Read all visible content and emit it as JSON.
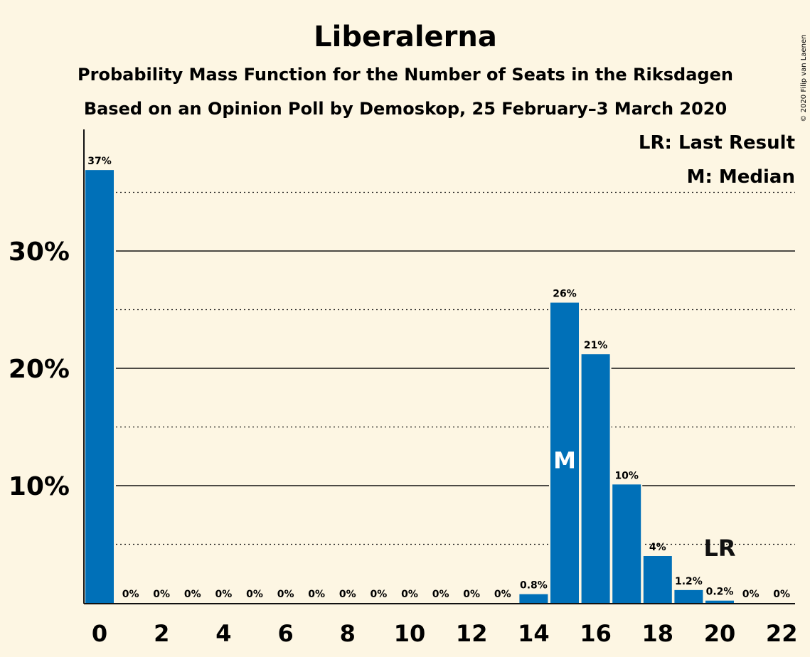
{
  "title": "Liberalerna",
  "subtitle1": "Probability Mass Function for the Number of Seats in the Riksdagen",
  "subtitle2": "Based on an Opinion Poll by Demoskop, 25 February–3 March 2020",
  "copyright": "© 2020 Filip van Laenen",
  "legend": {
    "last_result": "LR: Last Result",
    "median": "M: Median"
  },
  "colors": {
    "bar": "#0070b8",
    "background": "#fdf6e3",
    "text": "#111111"
  },
  "chart_data": {
    "type": "bar",
    "x": [
      0,
      1,
      2,
      3,
      4,
      5,
      6,
      7,
      8,
      9,
      10,
      11,
      12,
      13,
      14,
      15,
      16,
      17,
      18,
      19,
      20,
      21,
      22
    ],
    "values": [
      37,
      0,
      0,
      0,
      0,
      0,
      0,
      0,
      0,
      0,
      0,
      0,
      0,
      0,
      0.8,
      26,
      21,
      10,
      4,
      1.2,
      0.2,
      0,
      0
    ],
    "data_labels": [
      "37%",
      "0%",
      "0%",
      "0%",
      "0%",
      "0%",
      "0%",
      "0%",
      "0%",
      "0%",
      "0%",
      "0%",
      "0%",
      "0%",
      "0.8%",
      "26%",
      "21%",
      "10%",
      "4%",
      "1.2%",
      "0.2%",
      "0%",
      "0%"
    ],
    "plot_values": [
      36.9,
      0,
      0,
      0,
      0,
      0,
      0,
      0,
      0,
      0,
      0,
      0,
      0,
      0,
      0.75,
      25.6,
      21.2,
      10.1,
      4.0,
      1.1,
      0.2,
      0,
      0
    ],
    "x_tick_labels": [
      "0",
      "2",
      "4",
      "6",
      "8",
      "10",
      "12",
      "14",
      "16",
      "18",
      "20",
      "22"
    ],
    "x_ticks": [
      0,
      2,
      4,
      6,
      8,
      10,
      12,
      14,
      16,
      18,
      20,
      22
    ],
    "y_ticks": [
      10,
      20,
      30
    ],
    "y_tick_labels": [
      "10%",
      "20%",
      "30%"
    ],
    "y_minor_gridlines": [
      5,
      15,
      25,
      35
    ],
    "ylim": [
      0,
      40
    ],
    "median_seat": 15,
    "median_label": "M",
    "last_result_seat": 20,
    "last_result_label": "LR",
    "grid": true,
    "legend_position": "top-right"
  }
}
